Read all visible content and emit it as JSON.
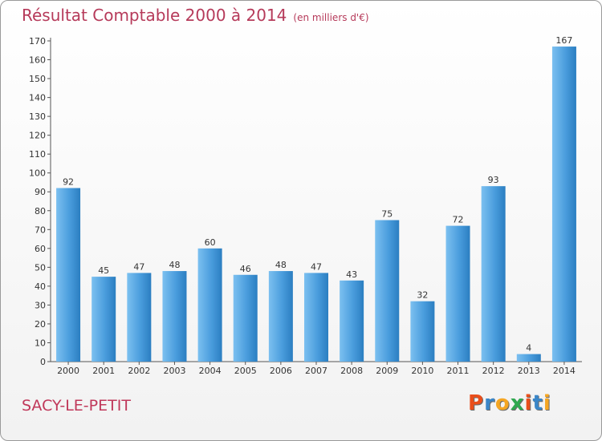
{
  "header": {
    "title": "Résultat Comptable 2000 à 2014",
    "subtitle": "(en milliers d'€)"
  },
  "footer": {
    "commune": "SACY-LE-PETIT",
    "logo": "Proxiti",
    "logo_colors": [
      "#e94e1b",
      "#3a86c8",
      "#f5a623",
      "#2fa84f",
      "#e94e1b",
      "#3a86c8",
      "#f5a623"
    ]
  },
  "colors": {
    "bar_light": "#6bb3ea",
    "bar_dark": "#2b7ec1",
    "text": "#333333",
    "grid": "#cfcfcf"
  },
  "chart_data": {
    "type": "bar",
    "title": "Résultat Comptable 2000 à 2014",
    "subtitle": "(en milliers d'€)",
    "xlabel": "",
    "ylabel": "",
    "categories": [
      "2000",
      "2001",
      "2002",
      "2003",
      "2004",
      "2005",
      "2006",
      "2007",
      "2008",
      "2009",
      "2010",
      "2011",
      "2012",
      "2013",
      "2014"
    ],
    "values": [
      92,
      45,
      47,
      48,
      60,
      46,
      48,
      47,
      43,
      75,
      32,
      72,
      93,
      4,
      167
    ],
    "ylim": [
      0,
      170
    ],
    "yticks": [
      0,
      10,
      20,
      30,
      40,
      50,
      60,
      70,
      80,
      90,
      100,
      110,
      120,
      130,
      140,
      150,
      160,
      170
    ],
    "grid": false,
    "legend": "none",
    "data_labels": true
  }
}
